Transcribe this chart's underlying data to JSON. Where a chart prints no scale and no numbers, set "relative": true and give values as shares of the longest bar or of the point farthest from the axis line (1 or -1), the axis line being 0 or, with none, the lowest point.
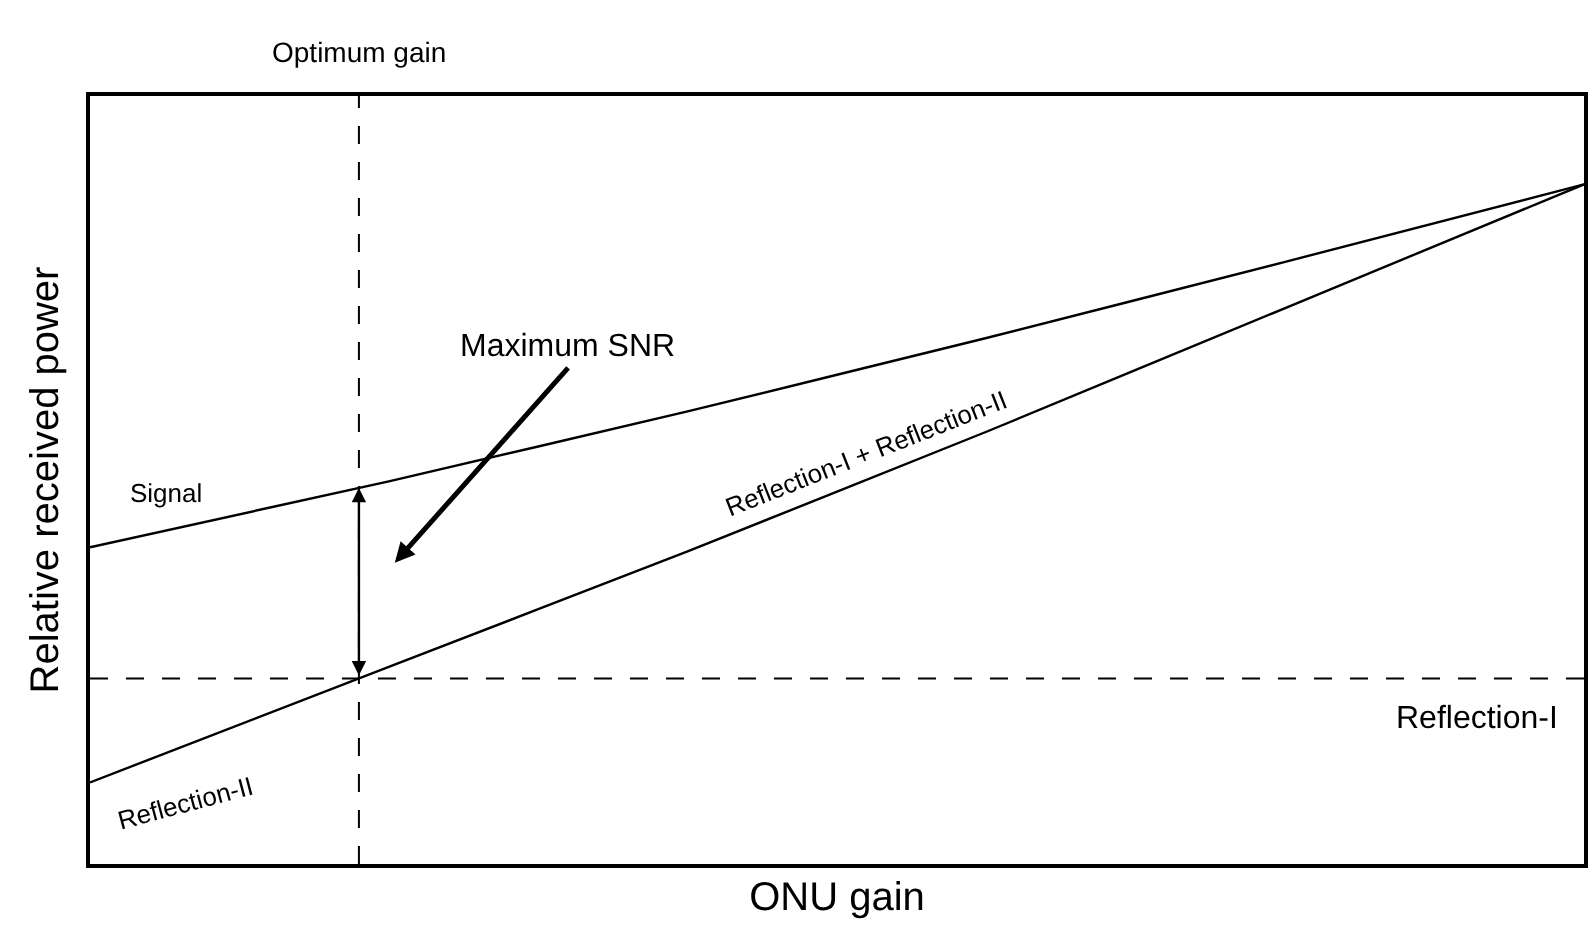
{
  "chart_data": {
    "type": "line",
    "relative": true,
    "xlabel": "ONU gain",
    "ylabel": "Relative received power",
    "categories": [
      null,
      null,
      null,
      null,
      null,
      null
    ],
    "series": [
      {
        "name": "Signal",
        "color": "#000000",
        "values": [
          0.466,
          0.563,
          0.666,
          0.774,
          0.886,
          1
        ]
      },
      {
        "name": "Reflection-I + Reflection-II",
        "color": "#000000",
        "values": [
          0.12,
          0.29,
          0.46,
          0.636,
          0.818,
          1
        ]
      }
    ],
    "ref_lines": [
      {
        "axis": "y",
        "value": 0.273,
        "label": "Reflection-I",
        "color": "#000000",
        "line_style": "dashed"
      }
    ],
    "annotations": [
      "Reflection-II",
      "Maximum SNR",
      "Optimum gain"
    ],
    "grid": false,
    "legend": false,
    "marker": "none",
    "line_style": "solid"
  }
}
